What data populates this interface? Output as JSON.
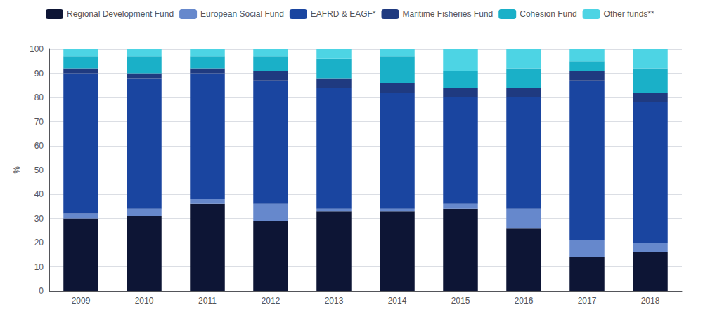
{
  "chart_data": {
    "type": "bar",
    "stacked": true,
    "categories": [
      "2009",
      "2010",
      "2011",
      "2012",
      "2013",
      "2014",
      "2015",
      "2016",
      "2017",
      "2018"
    ],
    "series": [
      {
        "name": "Regional Development Fund",
        "color": "#0d1535",
        "values": [
          30,
          31,
          36,
          29,
          33,
          33,
          34,
          26,
          14,
          16
        ]
      },
      {
        "name": "European Social Fund",
        "color": "#6688cc",
        "values": [
          2,
          3,
          2,
          7,
          1,
          1,
          2,
          8,
          7,
          4
        ]
      },
      {
        "name": "EAFRD & EAGF*",
        "color": "#1a45a0",
        "values": [
          58,
          54,
          52,
          51,
          50,
          48,
          44,
          46,
          66,
          58
        ]
      },
      {
        "name": "Maritime Fisheries Fund",
        "color": "#1f3a80",
        "values": [
          2,
          2,
          2,
          4,
          4,
          4,
          4,
          4,
          4,
          4
        ]
      },
      {
        "name": "Cohesion Fund",
        "color": "#1ab0c8",
        "values": [
          5,
          7,
          5,
          6,
          8,
          11,
          7,
          8,
          4,
          10
        ]
      },
      {
        "name": "Other funds**",
        "color": "#4dd4e4",
        "values": [
          3,
          3,
          3,
          3,
          4,
          3,
          9,
          8,
          5,
          8
        ]
      }
    ],
    "ylabel": "%",
    "ylim": [
      0,
      100
    ],
    "yticks": [
      0,
      10,
      20,
      30,
      40,
      50,
      60,
      70,
      80,
      90,
      100
    ],
    "grid": true,
    "legend": "upper left"
  }
}
